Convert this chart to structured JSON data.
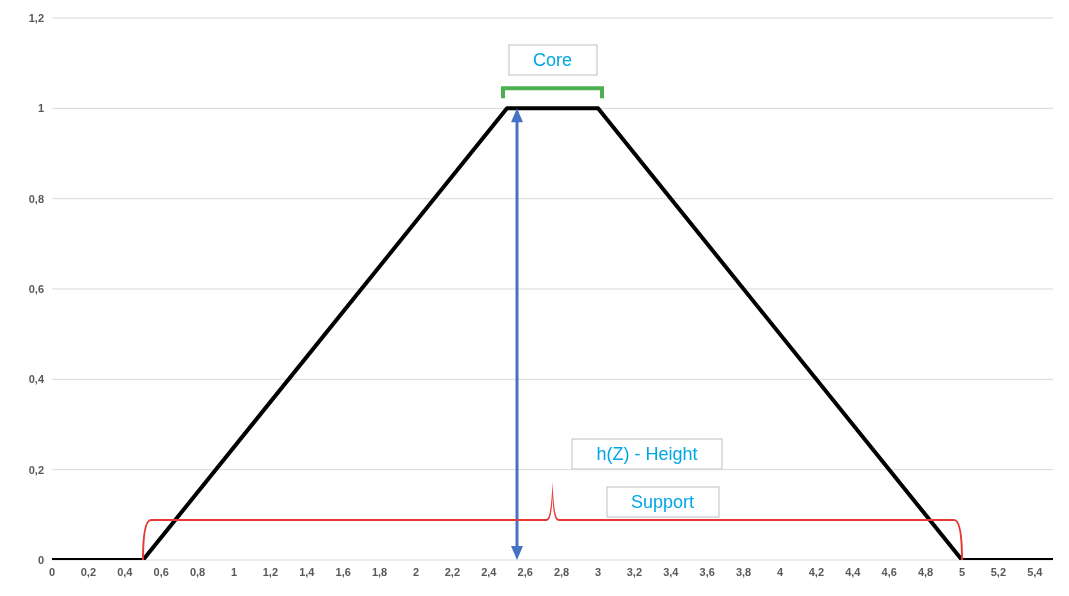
{
  "chart_data": {
    "type": "line",
    "x": [
      0,
      0.5,
      2.5,
      3,
      5,
      5.5
    ],
    "series": [
      {
        "color": "#000000",
        "values": [
          0,
          0,
          1,
          1,
          0,
          0
        ]
      }
    ],
    "xlim": [
      0,
      5.5
    ],
    "xticks": [
      {
        "value": 0,
        "label": "0"
      },
      {
        "value": 0.2,
        "label": "0,2"
      },
      {
        "value": 0.4,
        "label": "0,4"
      },
      {
        "value": 0.6,
        "label": "0,6"
      },
      {
        "value": 0.8,
        "label": "0,8"
      },
      {
        "value": 1,
        "label": "1"
      },
      {
        "value": 1.2,
        "label": "1,2"
      },
      {
        "value": 1.4,
        "label": "1,4"
      },
      {
        "value": 1.6,
        "label": "1,6"
      },
      {
        "value": 1.8,
        "label": "1,8"
      },
      {
        "value": 2,
        "label": "2"
      },
      {
        "value": 2.2,
        "label": "2,2"
      },
      {
        "value": 2.4,
        "label": "2,4"
      },
      {
        "value": 2.6,
        "label": "2,6"
      },
      {
        "value": 2.8,
        "label": "2,8"
      },
      {
        "value": 3,
        "label": "3"
      },
      {
        "value": 3.2,
        "label": "3,2"
      },
      {
        "value": 3.4,
        "label": "3,4"
      },
      {
        "value": 3.6,
        "label": "3,6"
      },
      {
        "value": 3.8,
        "label": "3,8"
      },
      {
        "value": 4,
        "label": "4"
      },
      {
        "value": 4.2,
        "label": "4,2"
      },
      {
        "value": 4.4,
        "label": "4,4"
      },
      {
        "value": 4.6,
        "label": "4,6"
      },
      {
        "value": 4.8,
        "label": "4,8"
      },
      {
        "value": 5,
        "label": "5"
      },
      {
        "value": 5.2,
        "label": "5,2"
      },
      {
        "value": 5.4,
        "label": "5,4"
      }
    ],
    "ylim": [
      0,
      1.2
    ],
    "yticks": [
      {
        "value": 0,
        "label": "0"
      },
      {
        "value": 0.2,
        "label": "0,2"
      },
      {
        "value": 0.4,
        "label": "0,4"
      },
      {
        "value": 0.6,
        "label": "0,6"
      },
      {
        "value": 0.8,
        "label": "0,8"
      },
      {
        "value": 1,
        "label": "1"
      },
      {
        "value": 1.2,
        "label": "1,2"
      }
    ],
    "grid": "y",
    "marker": "none",
    "line_style": "solid",
    "legend": false,
    "annotations": [
      "Core",
      "h(Z) - Height",
      "Support"
    ]
  }
}
